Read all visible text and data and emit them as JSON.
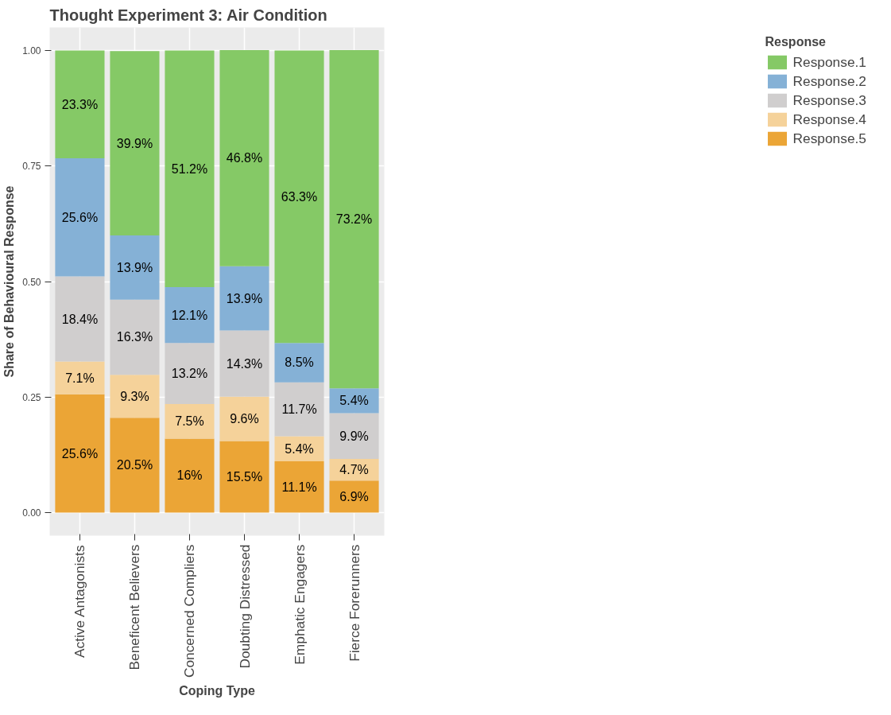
{
  "chart_data": {
    "type": "bar",
    "title": "Thought Experiment 3: Air Condition",
    "xlabel": "Coping Type",
    "ylabel": "Share of Behavioural Response",
    "legend_title": "Response",
    "categories": [
      "Active Antagonists",
      "Beneficent Believers",
      "Concerned Compliers",
      "Doubting Distressed",
      "Emphatic Engagers",
      "Fierce Forerunners"
    ],
    "stacked": true,
    "legend": "right",
    "grid": true,
    "ylim": [
      -0.05,
      1.05
    ],
    "yticks": [
      {
        "value": 0,
        "label": "0.00"
      },
      {
        "value": 0.25,
        "label": "0.25"
      },
      {
        "value": 0.5,
        "label": "0.50"
      },
      {
        "value": 0.75,
        "label": "0.75"
      },
      {
        "value": 1,
        "label": "1.00"
      }
    ],
    "series": [
      {
        "name": "Response.5",
        "color": "#eba536",
        "values": [
          0.256,
          0.205,
          0.16,
          0.155,
          0.111,
          0.069
        ],
        "value_labels": [
          "25.6%",
          "20.5%",
          "16%",
          "15.5%",
          "11.1%",
          "6.9%"
        ]
      },
      {
        "name": "Response.4",
        "color": "#f5d29a",
        "values": [
          0.071,
          0.093,
          0.075,
          0.096,
          0.054,
          0.047
        ],
        "value_labels": [
          "7.1%",
          "9.3%",
          "7.5%",
          "9.6%",
          "5.4%",
          "4.7%"
        ]
      },
      {
        "name": "Response.3",
        "color": "#d0cece",
        "values": [
          0.184,
          0.163,
          0.132,
          0.143,
          0.117,
          0.099
        ],
        "value_labels": [
          "18.4%",
          "16.3%",
          "13.2%",
          "14.3%",
          "11.7%",
          "9.9%"
        ]
      },
      {
        "name": "Response.2",
        "color": "#85b1d6",
        "values": [
          0.256,
          0.139,
          0.121,
          0.139,
          0.085,
          0.054
        ],
        "value_labels": [
          "25.6%",
          "13.9%",
          "12.1%",
          "13.9%",
          "8.5%",
          "5.4%"
        ]
      },
      {
        "name": "Response.1",
        "color": "#85c966",
        "values": [
          0.233,
          0.399,
          0.512,
          0.468,
          0.633,
          0.732
        ],
        "value_labels": [
          "23.3%",
          "39.9%",
          "51.2%",
          "46.8%",
          "63.3%",
          "73.2%"
        ]
      }
    ]
  }
}
